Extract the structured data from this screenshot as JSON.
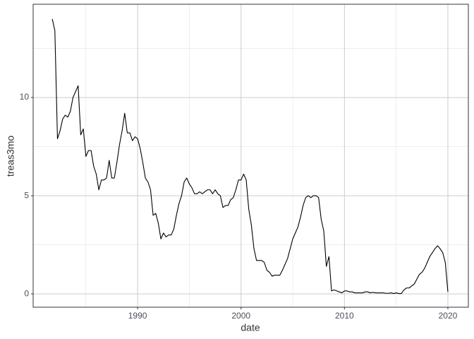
{
  "chart_data": {
    "type": "line",
    "x_label": "date",
    "y_label": "treas3mo",
    "x": [
      1981.75,
      1982,
      1982.25,
      1982.5,
      1982.75,
      1983,
      1983.25,
      1983.5,
      1983.75,
      1984,
      1984.25,
      1984.5,
      1984.75,
      1985,
      1985.25,
      1985.5,
      1985.75,
      1986,
      1986.25,
      1986.5,
      1986.75,
      1987,
      1987.25,
      1987.5,
      1987.75,
      1988,
      1988.25,
      1988.5,
      1988.75,
      1989,
      1989.25,
      1989.5,
      1989.75,
      1990,
      1990.25,
      1990.5,
      1990.75,
      1991,
      1991.25,
      1991.5,
      1991.75,
      1992,
      1992.25,
      1992.5,
      1992.75,
      1993,
      1993.25,
      1993.5,
      1993.75,
      1994,
      1994.25,
      1994.5,
      1994.75,
      1995,
      1995.25,
      1995.5,
      1995.75,
      1996,
      1996.25,
      1996.5,
      1996.75,
      1997,
      1997.25,
      1997.5,
      1997.75,
      1998,
      1998.25,
      1998.5,
      1998.75,
      1999,
      1999.25,
      1999.5,
      1999.75,
      2000,
      2000.25,
      2000.5,
      2000.75,
      2001,
      2001.25,
      2001.5,
      2001.75,
      2002,
      2002.25,
      2002.5,
      2002.75,
      2003,
      2003.25,
      2003.5,
      2003.75,
      2004,
      2004.25,
      2004.5,
      2004.75,
      2005,
      2005.25,
      2005.5,
      2005.75,
      2006,
      2006.25,
      2006.5,
      2006.75,
      2007,
      2007.25,
      2007.5,
      2007.75,
      2008,
      2008.25,
      2008.5,
      2008.75,
      2009,
      2009.25,
      2009.5,
      2009.75,
      2010,
      2010.25,
      2010.5,
      2010.75,
      2011,
      2011.25,
      2011.5,
      2011.75,
      2012,
      2012.25,
      2012.5,
      2012.75,
      2013,
      2013.25,
      2013.5,
      2013.75,
      2014,
      2014.25,
      2014.5,
      2014.75,
      2015,
      2015.25,
      2015.5,
      2015.75,
      2016,
      2016.25,
      2016.5,
      2016.75,
      2017,
      2017.25,
      2017.5,
      2017.75,
      2018,
      2018.25,
      2018.5,
      2018.75,
      2019,
      2019.25,
      2019.5,
      2019.75,
      2020
    ],
    "series": [
      {
        "color": "#000000",
        "values": [
          14.0,
          13.4,
          7.9,
          8.3,
          8.9,
          9.1,
          9.0,
          9.3,
          10.0,
          10.3,
          10.6,
          8.1,
          8.4,
          7.0,
          7.3,
          7.3,
          6.5,
          6.1,
          5.3,
          5.8,
          5.8,
          5.9,
          6.8,
          5.9,
          5.9,
          6.7,
          7.6,
          8.3,
          9.2,
          8.2,
          8.2,
          7.8,
          8.0,
          7.9,
          7.4,
          6.7,
          5.9,
          5.7,
          5.3,
          4.0,
          4.1,
          3.6,
          2.8,
          3.1,
          2.9,
          3.0,
          3.0,
          3.3,
          4.0,
          4.6,
          5.0,
          5.7,
          5.9,
          5.6,
          5.4,
          5.1,
          5.1,
          5.2,
          5.1,
          5.2,
          5.3,
          5.3,
          5.1,
          5.3,
          5.1,
          5.0,
          4.4,
          4.5,
          4.5,
          4.8,
          4.9,
          5.3,
          5.8,
          5.8,
          6.1,
          5.8,
          4.3,
          3.5,
          2.3,
          1.7,
          1.7,
          1.7,
          1.6,
          1.2,
          1.1,
          0.9,
          0.95,
          0.95,
          0.95,
          1.2,
          1.5,
          1.8,
          2.3,
          2.8,
          3.1,
          3.4,
          3.9,
          4.5,
          4.9,
          5.0,
          4.9,
          5.0,
          5.0,
          4.9,
          3.8,
          3.2,
          1.4,
          1.9,
          0.15,
          0.2,
          0.15,
          0.1,
          0.05,
          0.15,
          0.15,
          0.1,
          0.1,
          0.05,
          0.05,
          0.05,
          0.05,
          0.1,
          0.1,
          0.05,
          0.08,
          0.05,
          0.05,
          0.05,
          0.05,
          0.03,
          0.03,
          0.05,
          0.02,
          0.05,
          0.02,
          0.02,
          0.2,
          0.3,
          0.3,
          0.4,
          0.5,
          0.75,
          1.0,
          1.1,
          1.3,
          1.6,
          1.9,
          2.1,
          2.3,
          2.45,
          2.3,
          2.1,
          1.6,
          0.1
        ]
      }
    ],
    "xlim": [
      1979.9,
      2021.98
    ],
    "xticks": [
      1990,
      2000,
      2010,
      2020
    ],
    "ylim": [
      -0.68,
      14.75
    ],
    "yticks": [
      0,
      5,
      10
    ],
    "grid": true
  }
}
